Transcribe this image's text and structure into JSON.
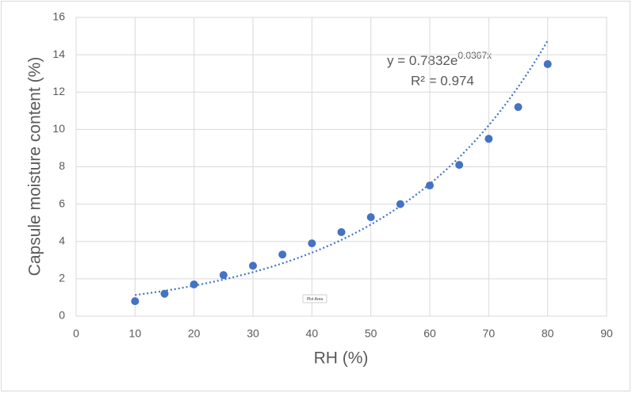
{
  "chart_data": {
    "type": "scatter",
    "x_label": "RH (%)",
    "y_label": "Capsule moisture content (%)",
    "x": [
      10,
      15,
      20,
      25,
      30,
      35,
      40,
      45,
      50,
      55,
      60,
      65,
      70,
      75,
      80
    ],
    "series": [
      {
        "name": "Capsule moisture content",
        "color": "#4472c4",
        "values": [
          0.8,
          1.2,
          1.7,
          2.2,
          2.7,
          3.3,
          3.9,
          4.5,
          5.3,
          6.0,
          7.0,
          8.1,
          9.5,
          11.2,
          13.5
        ]
      }
    ],
    "trendline": {
      "type": "exponential",
      "a": 0.7832,
      "b": 0.0367,
      "xlim": [
        10,
        80
      ],
      "color": "#4472c4",
      "equation_base": "y = 0.7832e",
      "equation_exponent": "0.0367x",
      "r_squared_label": "R² = 0.974"
    },
    "xlim": [
      0,
      90
    ],
    "xticks": [
      0,
      10,
      20,
      30,
      40,
      50,
      60,
      70,
      80,
      90
    ],
    "ylim": [
      0,
      16
    ],
    "yticks": [
      0,
      2,
      4,
      6,
      8,
      10,
      12,
      14,
      16
    ],
    "grid": true,
    "tooltip": "Plot Area"
  }
}
